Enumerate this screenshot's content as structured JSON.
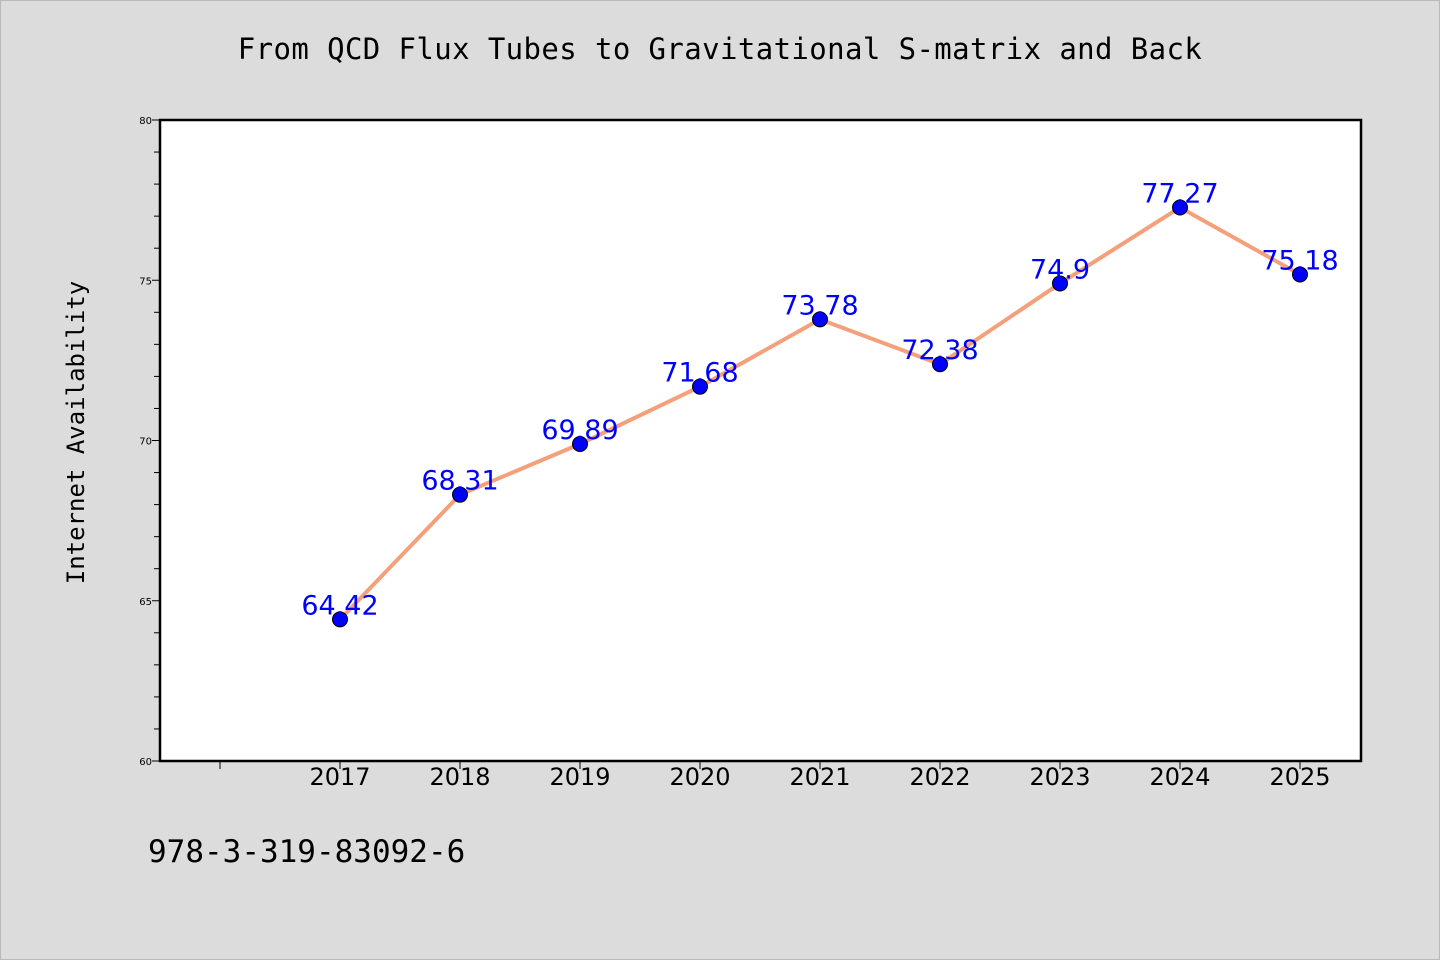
{
  "chart_data": {
    "type": "line",
    "title": "From QCD Flux Tubes to Gravitational S-matrix and Back",
    "xlabel": "",
    "ylabel": "Internet Availability",
    "categories": [
      "2017",
      "2018",
      "2019",
      "2020",
      "2021",
      "2022",
      "2023",
      "2024",
      "2025"
    ],
    "series": [
      {
        "values": [
          64.42,
          68.31,
          69.89,
          71.68,
          73.78,
          72.38,
          74.9,
          77.27,
          75.18
        ],
        "data_labels": [
          "64.42",
          "68.31",
          "69.89",
          "71.68",
          "73.78",
          "72.38",
          "74.9",
          "77.27",
          "75.18"
        ]
      }
    ],
    "ylim": [
      60,
      80
    ],
    "yticks": [
      60,
      65,
      70,
      75,
      80
    ],
    "ytick_labels": [
      "60",
      "65",
      "70",
      "75",
      "80"
    ],
    "grid": false,
    "legend": "none",
    "colors": {
      "line": "#f4a07a",
      "marker": "#0000ff",
      "data_label": "#0000ff",
      "background": "#dcdcdc",
      "plot_area": "#ffffff"
    }
  },
  "footer": {
    "isbn": "978-3-319-83092-6"
  }
}
